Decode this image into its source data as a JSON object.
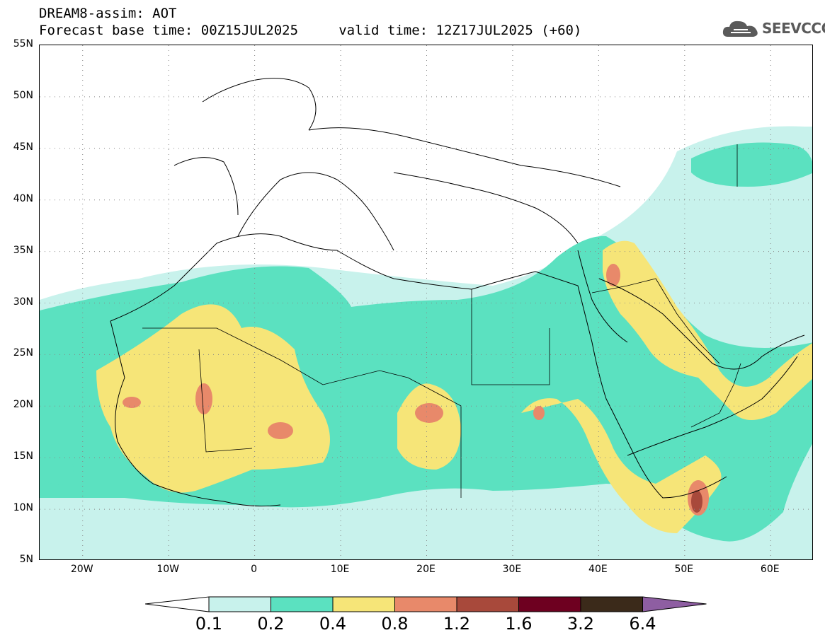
{
  "header": {
    "title": "DREAM8-assim: AOT",
    "subtitle": "Forecast base time: 00Z15JUL2025     valid time: 12Z17JUL2025 (+60)"
  },
  "logo": {
    "text": "SEEVCCC",
    "icon": "cloud-icon"
  },
  "map": {
    "lat_labels": [
      "55N",
      "50N",
      "45N",
      "40N",
      "35N",
      "30N",
      "25N",
      "20N",
      "15N",
      "10N",
      "5N"
    ],
    "lon_labels": [
      "20W",
      "10W",
      "0",
      "10E",
      "20E",
      "30E",
      "40E",
      "50E",
      "60E"
    ],
    "lat_values": [
      55,
      50,
      45,
      40,
      35,
      30,
      25,
      20,
      15,
      10,
      5
    ],
    "lon_values": [
      -20,
      -10,
      0,
      10,
      20,
      30,
      40,
      50,
      60
    ],
    "extent": {
      "lon_min": -25,
      "lon_max": 65,
      "lat_min": 5,
      "lat_max": 55
    }
  },
  "colorbar": {
    "levels": [
      "0.1",
      "0.2",
      "0.4",
      "0.8",
      "1.2",
      "1.6",
      "3.2",
      "6.4"
    ],
    "colors": [
      "#ffffff",
      "#c8f2ec",
      "#5be1c0",
      "#f6e578",
      "#e8896a",
      "#a8493b",
      "#6e0020",
      "#3b2a1a",
      "#8e5ea2"
    ]
  },
  "chart_data": {
    "type": "contour-map",
    "variable": "AOT",
    "levels": [
      0.1,
      0.2,
      0.4,
      0.8,
      1.2,
      1.6,
      3.2,
      6.4
    ],
    "xlim": [
      -25,
      65
    ],
    "ylim": [
      5,
      55
    ],
    "grid": "dotted"
  }
}
